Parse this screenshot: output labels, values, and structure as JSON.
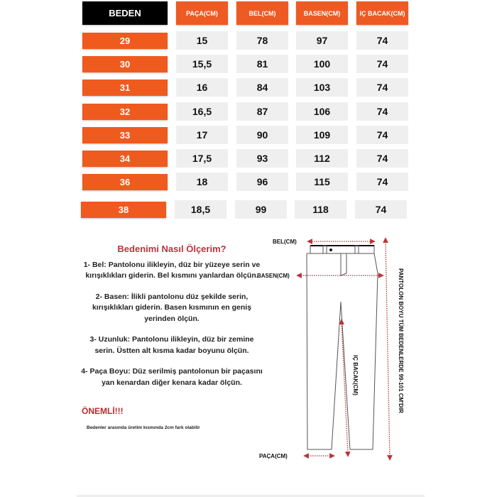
{
  "table": {
    "headers": [
      "BEDEN",
      "PAÇA(CM)",
      "BEL(CM)",
      "BASEN(CM)",
      "IÇ BACAK(CM)"
    ],
    "rows": [
      {
        "beden": "29",
        "paca": "15",
        "bel": "78",
        "basen": "97",
        "ic_bacak": "74"
      },
      {
        "beden": "30",
        "paca": "15,5",
        "bel": "81",
        "basen": "100",
        "ic_bacak": "74"
      },
      {
        "beden": "31",
        "paca": "16",
        "bel": "84",
        "basen": "103",
        "ic_bacak": "74"
      },
      {
        "beden": "32",
        "paca": "16,5",
        "bel": "87",
        "basen": "106",
        "ic_bacak": "74"
      },
      {
        "beden": "33",
        "paca": "17",
        "bel": "90",
        "basen": "109",
        "ic_bacak": "74"
      },
      {
        "beden": "34",
        "paca": "17,5",
        "bel": "93",
        "basen": "112",
        "ic_bacak": "74"
      },
      {
        "beden": "36",
        "paca": "18",
        "bel": "96",
        "basen": "115",
        "ic_bacak": "74"
      },
      {
        "beden": "38",
        "paca": "18,5",
        "bel": "99",
        "basen": "118",
        "ic_bacak": "74"
      }
    ]
  },
  "guide": {
    "title": "Bedenimi  Nasıl Ölçerim?",
    "steps": [
      "1- Bel: Pantolonu ilikleyin, düz bir yüzeye serin ve kırışıklıkları giderin. Bel kısmını yanlardan ölçün.",
      "2- Basen: İlikli pantolonu düz şekilde serin, kırışıklıkları giderin. Basen kısmının en geniş yerinden ölçün.",
      "3- Uzunluk: Pantolonu ilikleyin, düz bir zemine serin. Üstten alt kısma kadar boyunu ölçün.",
      "4- Paça Boyu: Düz serilmiş pantolonun bir paçasını yan kenardan diğer kenara kadar ölçün."
    ],
    "warning": "ÖNEMLİ!!!",
    "note": "Bedenler arasında üretim kısmında 2cm fark olabilir"
  },
  "diagram": {
    "bel": "BEL(CM)",
    "basen": "BASEN(CM)",
    "paca": "PAÇA(CM)",
    "ic_bacak": "IÇ BACAK(CM)",
    "boy": "PANTOLON BOYU TÜM BEDENLERDE 99-101 CM'DIR"
  },
  "colors": {
    "accent": "#ee5a24",
    "header_black": "#000000",
    "arrow": "#b8353a",
    "cell_bg": "#efefef"
  }
}
